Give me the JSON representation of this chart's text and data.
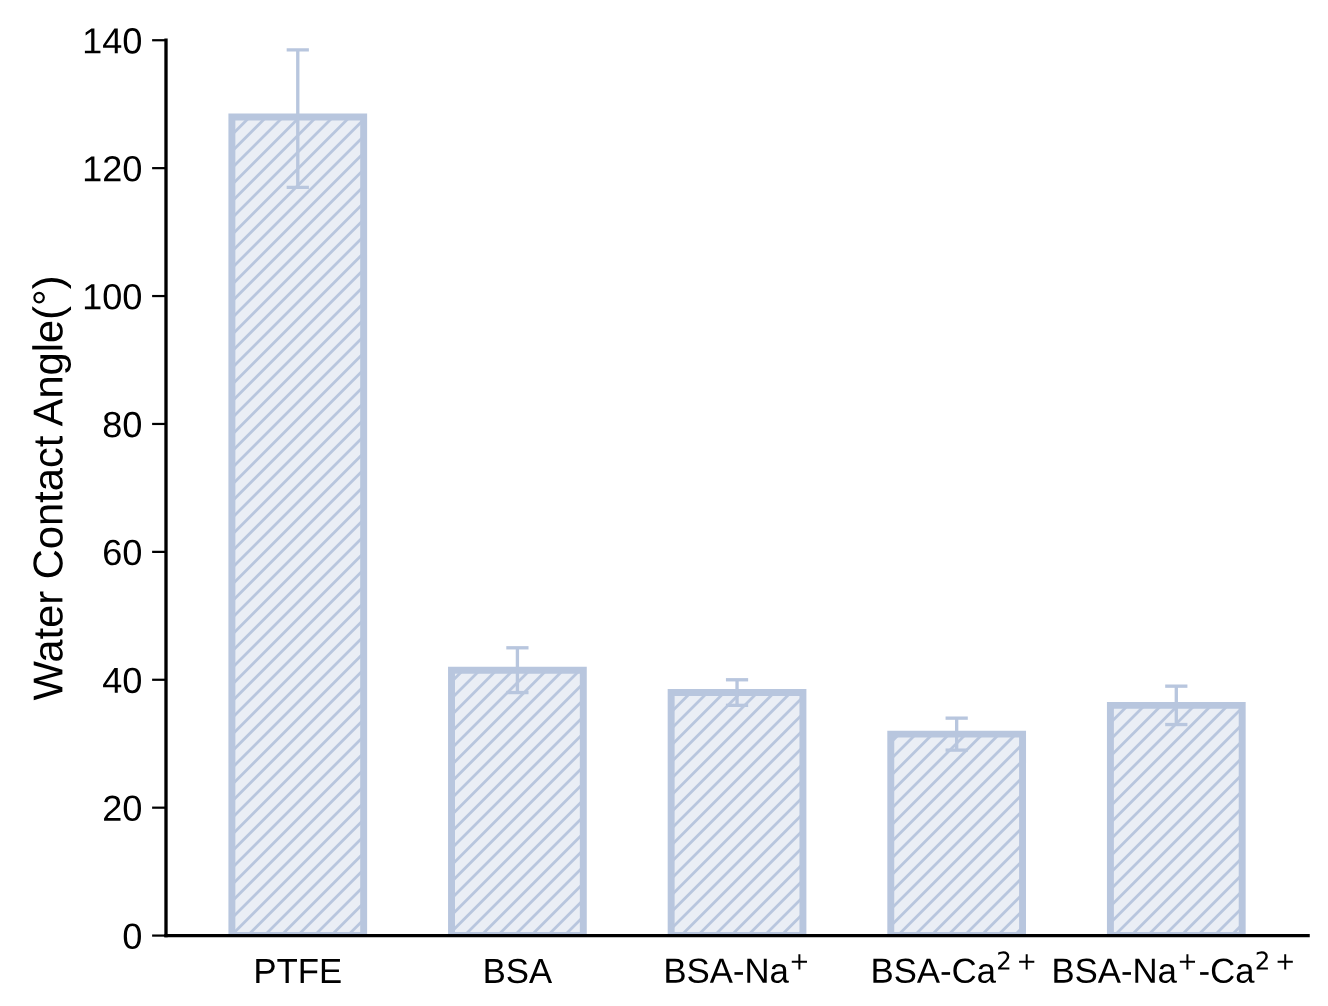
{
  "chart_data": {
    "type": "bar",
    "ylabel": "Water Contact Angle(°)",
    "categories": [
      "PTFE",
      "BSA",
      "BSA-Na$^{+}$",
      "BSA-Ca$^{2+}$",
      "BSA-Na$^{+}$-Ca$^{2+}$"
    ],
    "values": [
      128,
      41.5,
      38,
      31.5,
      36
    ],
    "errors": [
      [
        117,
        138.5
      ],
      [
        38,
        45
      ],
      [
        36,
        40
      ],
      [
        29,
        34
      ],
      [
        33,
        39
      ]
    ],
    "color": "#b8c6de",
    "ylim": [
      0,
      140
    ],
    "yticks": [
      0,
      20,
      40,
      60,
      80,
      100,
      120,
      140
    ],
    "grid": false
  }
}
